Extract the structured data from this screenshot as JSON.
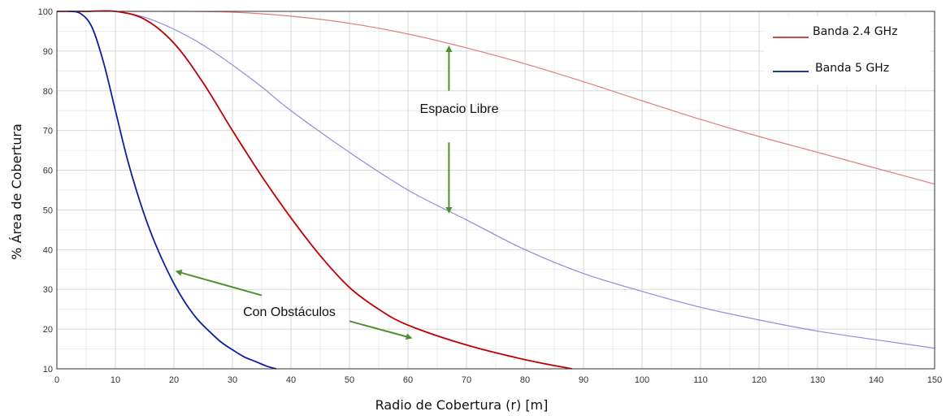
{
  "chart_data": {
    "type": "line",
    "xlabel": "Radio de Cobertura (r) [m]",
    "ylabel": "% Área de Cobertura",
    "xlim": [
      0,
      150
    ],
    "ylim": [
      10,
      100
    ],
    "xticks": [
      0,
      10,
      20,
      30,
      40,
      50,
      60,
      70,
      80,
      90,
      100,
      110,
      120,
      130,
      140,
      150
    ],
    "yticks": [
      10,
      20,
      30,
      40,
      50,
      60,
      70,
      80,
      90,
      100
    ],
    "grid": true,
    "legend": {
      "placement": "top-right",
      "entries": [
        {
          "label": "Banda 2.4 GHz",
          "color": "#c0504d"
        },
        {
          "label": "Banda 5 GHz",
          "color": "#1f3a93"
        }
      ]
    },
    "series": [
      {
        "band": "2.4 GHz",
        "condition": "Espacio Libre",
        "color": "#e07c7c",
        "x": [
          0,
          10,
          20,
          30,
          40,
          50,
          60,
          70,
          80,
          90,
          100,
          110,
          120,
          130,
          140,
          150
        ],
        "y": [
          100,
          100,
          100,
          99.8,
          98.8,
          97,
          94.3,
          90.8,
          86.8,
          82.3,
          77.5,
          72.8,
          68.5,
          64.5,
          60.5,
          56.5
        ]
      },
      {
        "band": "5 GHz",
        "condition": "Espacio Libre",
        "color": "#8c8ce0",
        "x": [
          0,
          5,
          10,
          15,
          20,
          25,
          30,
          35,
          40,
          50,
          60,
          70,
          80,
          90,
          100,
          110,
          120,
          130,
          140,
          150
        ],
        "y": [
          100,
          100,
          100,
          98.5,
          95.5,
          91.5,
          86.5,
          81,
          75,
          64.5,
          55,
          47.5,
          40,
          34,
          29.5,
          25.5,
          22.3,
          19.5,
          17.3,
          15.2
        ]
      },
      {
        "band": "2.4 GHz",
        "condition": "Con Obstáculos",
        "color": "#c00000",
        "x": [
          0,
          5,
          10,
          15,
          20,
          25,
          30,
          35,
          40,
          45,
          50,
          55,
          60,
          70,
          80,
          88
        ],
        "y": [
          100,
          100,
          100,
          98,
          92,
          82,
          70,
          58.5,
          48,
          38.5,
          30.5,
          25,
          21,
          16,
          12.3,
          10
        ]
      },
      {
        "band": "5 GHz",
        "condition": "Con Obstáculos",
        "color": "#0d1ea3",
        "x": [
          2,
          4,
          6,
          8,
          10,
          12,
          14,
          16,
          18,
          20,
          22,
          24,
          26,
          28,
          30,
          32,
          34,
          36,
          37.5
        ],
        "y": [
          100,
          99.5,
          96,
          87,
          75,
          63,
          53,
          44.5,
          37.5,
          31.5,
          26.5,
          22.5,
          19.5,
          16.8,
          14.8,
          13,
          11.8,
          10.6,
          10
        ]
      }
    ],
    "annotations": [
      {
        "text": "Espacio Libre",
        "x": 67,
        "y": 73
      },
      {
        "text": "Con Obstáculos",
        "x": 40,
        "y": 24
      }
    ],
    "annotation_color": "#4e8f2f"
  }
}
